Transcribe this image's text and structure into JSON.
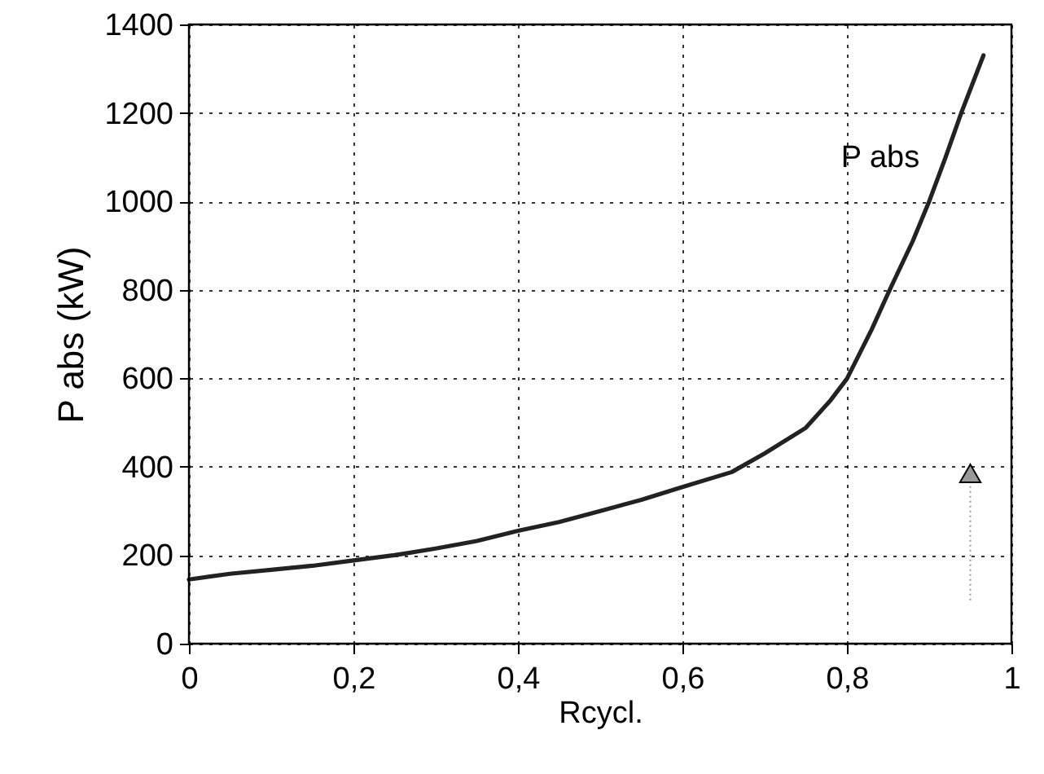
{
  "chart_data": {
    "type": "line",
    "xlabel": "Rcycl.",
    "ylabel": "P abs (kW)",
    "x": [
      0,
      0.05,
      0.1,
      0.15,
      0.2,
      0.25,
      0.3,
      0.35,
      0.4,
      0.45,
      0.5,
      0.55,
      0.6,
      0.66,
      0.7,
      0.75,
      0.78,
      0.8,
      0.83,
      0.852,
      0.88,
      0.9,
      0.92,
      0.939,
      0.966
    ],
    "series": [
      {
        "name": "P abs",
        "color": "#222222",
        "values": [
          145,
          158,
          167,
          176,
          188,
          200,
          215,
          232,
          255,
          275,
          300,
          325,
          354,
          388,
          430,
          488,
          550,
          599,
          710,
          800,
          910,
          1000,
          1100,
          1200,
          1330
        ]
      }
    ],
    "xlim": [
      0,
      1
    ],
    "ylim": [
      0,
      1400
    ],
    "xticks": [
      0,
      {
        "value": 0.2,
        "label": "0,2"
      },
      {
        "value": 0.4,
        "label": "0,4"
      },
      {
        "value": 0.6,
        "label": "0,6"
      },
      {
        "value": 0.8,
        "label": "0,8"
      },
      1
    ],
    "yticks": [
      0,
      200,
      400,
      600,
      800,
      1000,
      1200,
      1400
    ],
    "grid": true,
    "legend": false,
    "marker": "none",
    "line_style": "solid"
  }
}
